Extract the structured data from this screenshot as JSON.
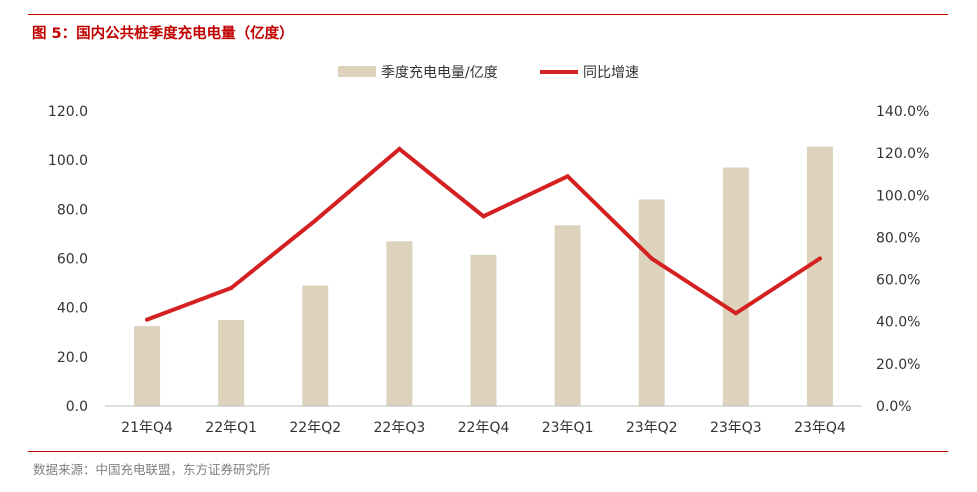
{
  "header": {
    "title": "图 5：国内公共桩季度充电电量（亿度）"
  },
  "footer": {
    "source": "数据来源：中国充电联盟，东方证券研究所"
  },
  "colors": {
    "bar": "#ddd3bd",
    "line": "#d42020",
    "accent": "#c00000"
  },
  "chart_data": {
    "type": "bar",
    "title": "图 5：国内公共桩季度充电电量（亿度）",
    "categories": [
      "21年Q4",
      "22年Q1",
      "22年Q2",
      "22年Q3",
      "22年Q4",
      "23年Q1",
      "23年Q2",
      "23年Q3",
      "23年Q4"
    ],
    "series": [
      {
        "name": "季度充电电量/亿度",
        "type": "bar",
        "axis": "left",
        "values": [
          32.5,
          35.0,
          49.0,
          67.0,
          61.5,
          73.5,
          84.0,
          97.0,
          105.5
        ]
      },
      {
        "name": "同比增速",
        "type": "line",
        "axis": "right",
        "values": [
          0.41,
          0.56,
          0.88,
          1.22,
          0.9,
          1.09,
          0.7,
          0.44,
          0.7
        ]
      }
    ],
    "ylim": [
      0,
      120
    ],
    "y2lim": [
      0,
      1.4
    ],
    "yticks": [
      "0.0",
      "20.0",
      "40.0",
      "60.0",
      "80.0",
      "100.0",
      "120.0"
    ],
    "y2ticks": [
      "0.0%",
      "20.0%",
      "40.0%",
      "60.0%",
      "80.0%",
      "100.0%",
      "120.0%",
      "140.0%"
    ],
    "grid": false,
    "legend": "top-center"
  }
}
